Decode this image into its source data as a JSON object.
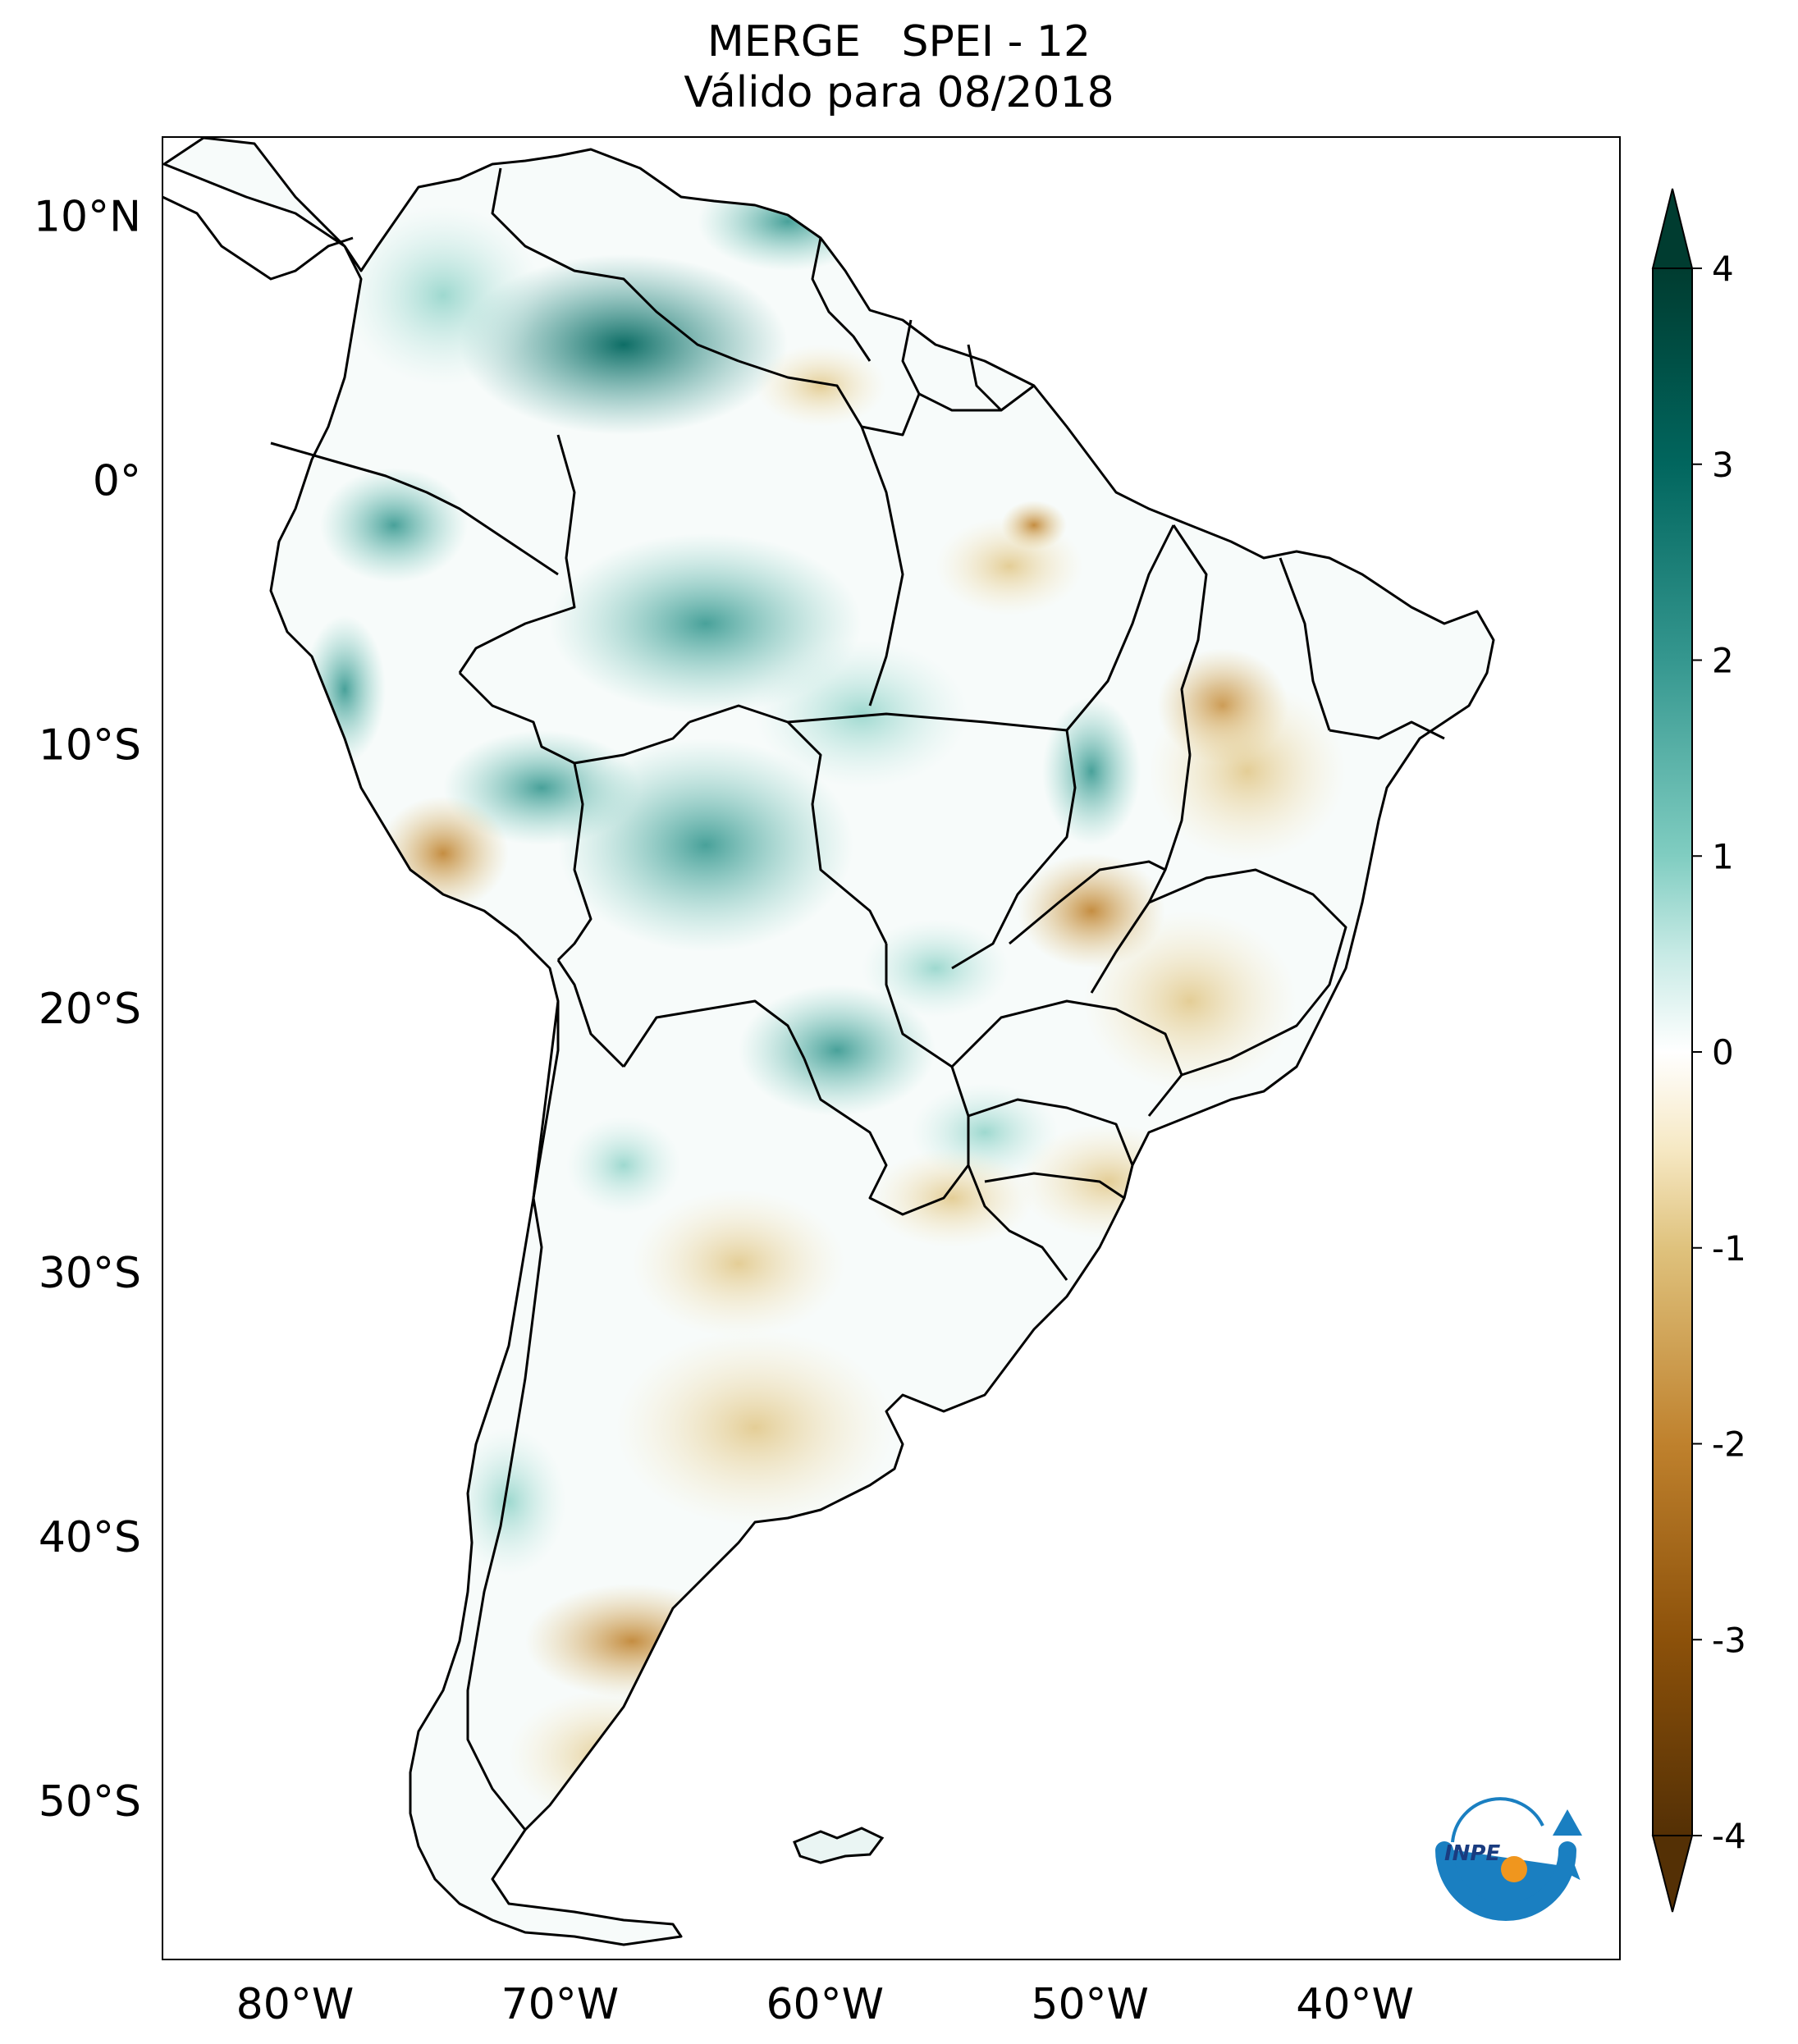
{
  "title": {
    "line1": "MERGE   SPEI - 12",
    "line2": "Válido para 08/2018"
  },
  "map": {
    "region": "South America",
    "variable": "SPEI - 12",
    "lat_range": [
      -56,
      13
    ],
    "lon_range": [
      -85,
      -30
    ],
    "lat_ticks": [
      {
        "value": 10,
        "label": "10°N"
      },
      {
        "value": 0,
        "label": "0°"
      },
      {
        "value": -10,
        "label": "10°S"
      },
      {
        "value": -20,
        "label": "20°S"
      },
      {
        "value": -30,
        "label": "30°S"
      },
      {
        "value": -40,
        "label": "40°S"
      },
      {
        "value": -50,
        "label": "50°S"
      }
    ],
    "lon_ticks": [
      {
        "value": -80,
        "label": "80°W"
      },
      {
        "value": -70,
        "label": "70°W"
      },
      {
        "value": -60,
        "label": "60°W"
      },
      {
        "value": -50,
        "label": "50°W"
      },
      {
        "value": -40,
        "label": "40°W"
      }
    ]
  },
  "colorbar": {
    "range": [
      -4,
      4
    ],
    "ticks": [
      {
        "value": 4,
        "label": "4"
      },
      {
        "value": 3,
        "label": "3"
      },
      {
        "value": 2,
        "label": "2"
      },
      {
        "value": 1,
        "label": "1"
      },
      {
        "value": 0,
        "label": "0"
      },
      {
        "value": -1,
        "label": "-1"
      },
      {
        "value": -2,
        "label": "-2"
      },
      {
        "value": -3,
        "label": "-3"
      },
      {
        "value": -4,
        "label": "-4"
      }
    ],
    "colors": {
      "max": "#003c30",
      "c3": "#01665e",
      "c2": "#35978f",
      "c1": "#80cdc1",
      "c05": "#c7eae5",
      "zero": "#ffffff",
      "n05": "#f6e8c3",
      "n1": "#dfc27d",
      "n2": "#bf812d",
      "n3": "#8c510a",
      "min": "#543005"
    }
  },
  "logo": {
    "text": "INPE",
    "colors": {
      "arc": "#1a7fc1",
      "dot": "#f0961e"
    }
  }
}
